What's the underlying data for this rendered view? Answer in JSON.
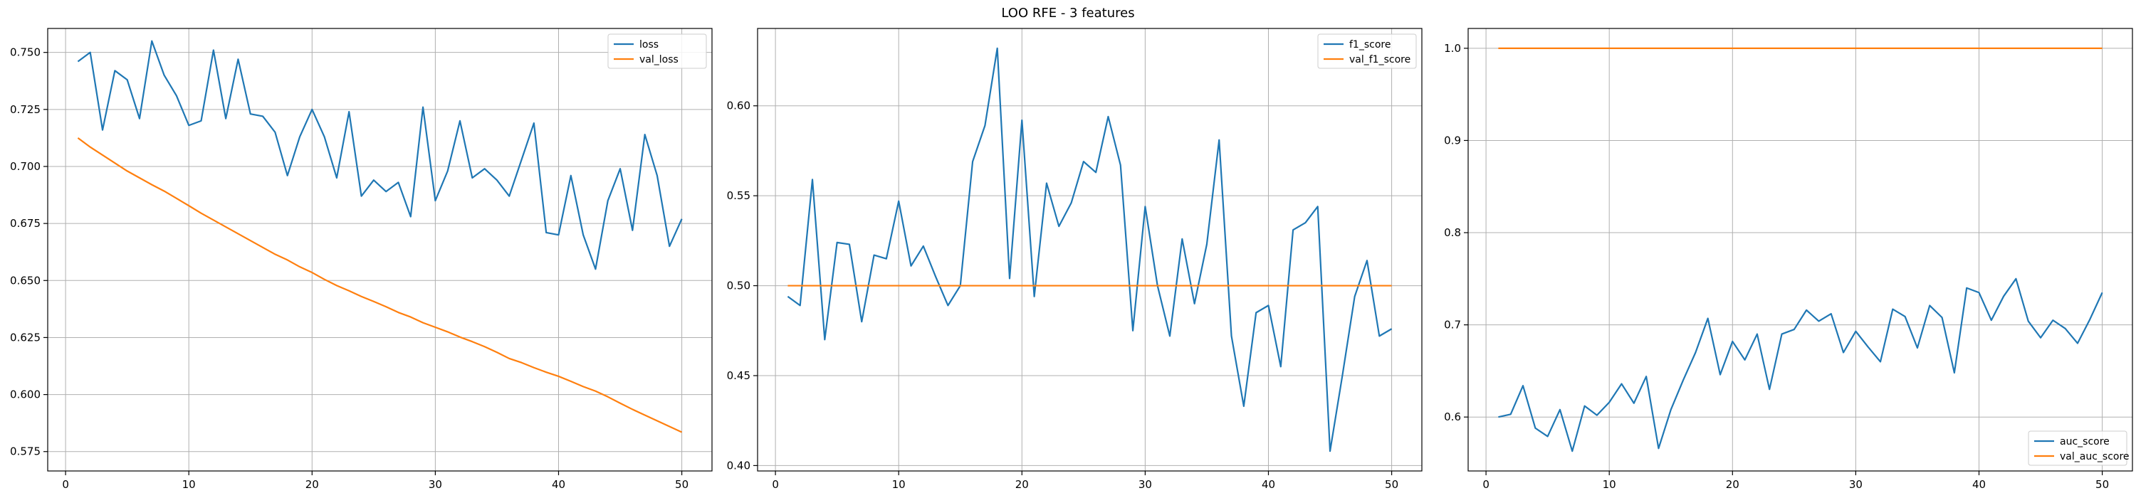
{
  "figure": {
    "suptitle": "LOO RFE - 3 features"
  },
  "chart_data": [
    {
      "type": "line",
      "x": [
        1,
        2,
        3,
        4,
        5,
        6,
        7,
        8,
        9,
        10,
        11,
        12,
        13,
        14,
        15,
        16,
        17,
        18,
        19,
        20,
        21,
        22,
        23,
        24,
        25,
        26,
        27,
        28,
        29,
        30,
        31,
        32,
        33,
        34,
        35,
        36,
        37,
        38,
        39,
        40,
        41,
        42,
        43,
        44,
        45,
        46,
        47,
        48,
        49,
        50
      ],
      "series": [
        {
          "name": "loss",
          "color": "#1f77b4",
          "values": [
            0.746,
            0.75,
            0.716,
            0.742,
            0.738,
            0.721,
            0.755,
            0.74,
            0.731,
            0.718,
            0.72,
            0.751,
            0.721,
            0.747,
            0.723,
            0.722,
            0.715,
            0.696,
            0.713,
            0.725,
            0.713,
            0.695,
            0.724,
            0.687,
            0.694,
            0.689,
            0.693,
            0.678,
            0.726,
            0.685,
            0.698,
            0.72,
            0.695,
            0.699,
            0.694,
            0.687,
            0.703,
            0.719,
            0.671,
            0.67,
            0.696,
            0.67,
            0.655,
            0.685,
            0.699,
            0.672,
            0.714,
            0.696,
            0.665,
            0.677
          ]
        },
        {
          "name": "val_loss",
          "color": "#ff7f0e",
          "values": [
            0.7125,
            0.7085,
            0.705,
            0.7015,
            0.698,
            0.695,
            0.692,
            0.6892,
            0.686,
            0.6828,
            0.6795,
            0.6765,
            0.6735,
            0.6705,
            0.6675,
            0.6645,
            0.6615,
            0.659,
            0.656,
            0.6535,
            0.6505,
            0.6478,
            0.6455,
            0.643,
            0.6408,
            0.6385,
            0.636,
            0.634,
            0.6315,
            0.6295,
            0.6275,
            0.6252,
            0.6232,
            0.621,
            0.6185,
            0.6158,
            0.614,
            0.6118,
            0.6098,
            0.608,
            0.6058,
            0.6035,
            0.6015,
            0.599,
            0.5962,
            0.5935,
            0.591,
            0.5885,
            0.586,
            0.5835
          ]
        }
      ],
      "xlim": [
        -1.45,
        52.45
      ],
      "ylim": [
        0.5665,
        0.7605
      ],
      "xticks": [
        0,
        10,
        20,
        30,
        40,
        50
      ],
      "xtick_labels": [
        "0",
        "10",
        "20",
        "30",
        "40",
        "50"
      ],
      "yticks": [
        0.575,
        0.6,
        0.625,
        0.65,
        0.675,
        0.7,
        0.725,
        0.75
      ],
      "ytick_labels": [
        "0.575",
        "0.600",
        "0.625",
        "0.650",
        "0.675",
        "0.700",
        "0.725",
        "0.750"
      ],
      "grid": true,
      "legend_placement": "upper right"
    },
    {
      "type": "line",
      "x": [
        1,
        2,
        3,
        4,
        5,
        6,
        7,
        8,
        9,
        10,
        11,
        12,
        13,
        14,
        15,
        16,
        17,
        18,
        19,
        20,
        21,
        22,
        23,
        24,
        25,
        26,
        27,
        28,
        29,
        30,
        31,
        32,
        33,
        34,
        35,
        36,
        37,
        38,
        39,
        40,
        41,
        42,
        43,
        44,
        45,
        46,
        47,
        48,
        49,
        50
      ],
      "series": [
        {
          "name": "f1_score",
          "color": "#1f77b4",
          "values": [
            0.494,
            0.489,
            0.559,
            0.47,
            0.524,
            0.523,
            0.48,
            0.517,
            0.515,
            0.547,
            0.511,
            0.522,
            0.505,
            0.489,
            0.5,
            0.569,
            0.589,
            0.632,
            0.504,
            0.592,
            0.494,
            0.557,
            0.533,
            0.546,
            0.569,
            0.563,
            0.594,
            0.567,
            0.475,
            0.544,
            0.5,
            0.472,
            0.526,
            0.49,
            0.523,
            0.581,
            0.472,
            0.433,
            0.485,
            0.489,
            0.455,
            0.531,
            0.535,
            0.544,
            0.408,
            0.45,
            0.494,
            0.514,
            0.472,
            0.476
          ]
        },
        {
          "name": "val_f1_score",
          "color": "#ff7f0e",
          "values": [
            0.5,
            0.5,
            0.5,
            0.5,
            0.5,
            0.5,
            0.5,
            0.5,
            0.5,
            0.5,
            0.5,
            0.5,
            0.5,
            0.5,
            0.5,
            0.5,
            0.5,
            0.5,
            0.5,
            0.5,
            0.5,
            0.5,
            0.5,
            0.5,
            0.5,
            0.5,
            0.5,
            0.5,
            0.5,
            0.5,
            0.5,
            0.5,
            0.5,
            0.5,
            0.5,
            0.5,
            0.5,
            0.5,
            0.5,
            0.5,
            0.5,
            0.5,
            0.5,
            0.5,
            0.5,
            0.5,
            0.5,
            0.5,
            0.5,
            0.5
          ]
        }
      ],
      "xlim": [
        -1.45,
        52.45
      ],
      "ylim": [
        0.397,
        0.643
      ],
      "xticks": [
        0,
        10,
        20,
        30,
        40,
        50
      ],
      "xtick_labels": [
        "0",
        "10",
        "20",
        "30",
        "40",
        "50"
      ],
      "yticks": [
        0.4,
        0.45,
        0.5,
        0.55,
        0.6
      ],
      "ytick_labels": [
        "0.40",
        "0.45",
        "0.50",
        "0.55",
        "0.60"
      ],
      "grid": true,
      "legend_placement": "upper right"
    },
    {
      "type": "line",
      "x": [
        1,
        2,
        3,
        4,
        5,
        6,
        7,
        8,
        9,
        10,
        11,
        12,
        13,
        14,
        15,
        16,
        17,
        18,
        19,
        20,
        21,
        22,
        23,
        24,
        25,
        26,
        27,
        28,
        29,
        30,
        31,
        32,
        33,
        34,
        35,
        36,
        37,
        38,
        39,
        40,
        41,
        42,
        43,
        44,
        45,
        46,
        47,
        48,
        49,
        50
      ],
      "series": [
        {
          "name": "auc_score",
          "color": "#1f77b4",
          "values": [
            0.6,
            0.603,
            0.634,
            0.588,
            0.579,
            0.608,
            0.563,
            0.612,
            0.602,
            0.616,
            0.636,
            0.615,
            0.644,
            0.566,
            0.608,
            0.64,
            0.67,
            0.707,
            0.646,
            0.682,
            0.662,
            0.69,
            0.63,
            0.69,
            0.695,
            0.716,
            0.704,
            0.712,
            0.67,
            0.693,
            0.676,
            0.66,
            0.717,
            0.709,
            0.675,
            0.721,
            0.708,
            0.648,
            0.74,
            0.735,
            0.705,
            0.731,
            0.75,
            0.704,
            0.686,
            0.705,
            0.696,
            0.68,
            0.706,
            0.735
          ]
        },
        {
          "name": "val_auc_score",
          "color": "#ff7f0e",
          "values": [
            1.0,
            1.0,
            1.0,
            1.0,
            1.0,
            1.0,
            1.0,
            1.0,
            1.0,
            1.0,
            1.0,
            1.0,
            1.0,
            1.0,
            1.0,
            1.0,
            1.0,
            1.0,
            1.0,
            1.0,
            1.0,
            1.0,
            1.0,
            1.0,
            1.0,
            1.0,
            1.0,
            1.0,
            1.0,
            1.0,
            1.0,
            1.0,
            1.0,
            1.0,
            1.0,
            1.0,
            1.0,
            1.0,
            1.0,
            1.0,
            1.0,
            1.0,
            1.0,
            1.0,
            1.0,
            1.0,
            1.0,
            1.0,
            1.0,
            1.0
          ]
        }
      ],
      "xlim": [
        -1.45,
        52.45
      ],
      "ylim": [
        0.5415,
        1.0215
      ],
      "xticks": [
        0,
        10,
        20,
        30,
        40,
        50
      ],
      "xtick_labels": [
        "0",
        "10",
        "20",
        "30",
        "40",
        "50"
      ],
      "yticks": [
        0.6,
        0.7,
        0.8,
        0.9,
        1.0
      ],
      "ytick_labels": [
        "0.6",
        "0.7",
        "0.8",
        "0.9",
        "1.0"
      ],
      "grid": true,
      "legend_placement": "lower right"
    }
  ]
}
